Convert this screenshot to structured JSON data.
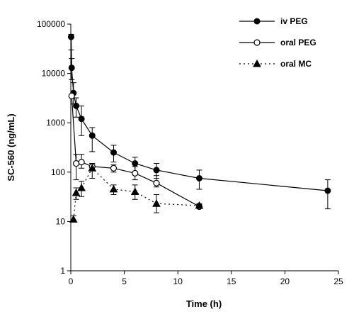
{
  "chart_data": {
    "type": "line",
    "title": "",
    "xlabel": "Time (h)",
    "ylabel": "SC-560 (ng/mL)",
    "x_scale": "linear",
    "y_scale": "log",
    "xlim": [
      0,
      25
    ],
    "ylim": [
      1,
      100000
    ],
    "x_ticks": [
      "0",
      "5",
      "10",
      "15",
      "20",
      "25"
    ],
    "y_ticks": [
      "1",
      "10",
      "100",
      "1000",
      "10000",
      "100000"
    ],
    "grid": false,
    "legend_position": "top-right",
    "series": [
      {
        "name": "iv PEG",
        "color": "#000000",
        "marker": "filled-circle",
        "line_style": "solid",
        "x": [
          0.03,
          0.08,
          0.25,
          0.5,
          1,
          2,
          4,
          6,
          8,
          12,
          24
        ],
        "y": [
          55000,
          13000,
          4000,
          2200,
          1200,
          550,
          250,
          150,
          110,
          75,
          42
        ],
        "error_low": [
          30000,
          7500,
          2400,
          1300,
          550,
          260,
          160,
          100,
          75,
          45,
          18
        ],
        "error_high": [
          62000,
          20000,
          6500,
          3200,
          2200,
          800,
          350,
          200,
          150,
          110,
          70
        ]
      },
      {
        "name": "oral PEG",
        "color": "#000000",
        "marker": "open-circle",
        "line_style": "solid",
        "x": [
          0.08,
          0.5,
          1,
          2,
          4,
          6,
          8,
          12
        ],
        "y": [
          3500,
          150,
          160,
          130,
          120,
          95,
          60,
          20
        ],
        "error_low": [
          3500,
          70,
          120,
          110,
          100,
          70,
          50,
          20
        ],
        "error_high": [
          3500,
          230,
          230,
          150,
          140,
          130,
          85,
          22
        ]
      },
      {
        "name": "oral MC",
        "color": "#000000",
        "marker": "filled-triangle",
        "line_style": "dotted",
        "x": [
          0.25,
          0.5,
          1,
          2,
          4,
          6,
          8,
          12
        ],
        "y": [
          11,
          38,
          48,
          120,
          45,
          40,
          23,
          21
        ],
        "error_low": [
          10,
          28,
          32,
          75,
          35,
          28,
          15,
          19
        ],
        "error_high": [
          13,
          48,
          65,
          150,
          55,
          55,
          35,
          23
        ]
      }
    ]
  }
}
